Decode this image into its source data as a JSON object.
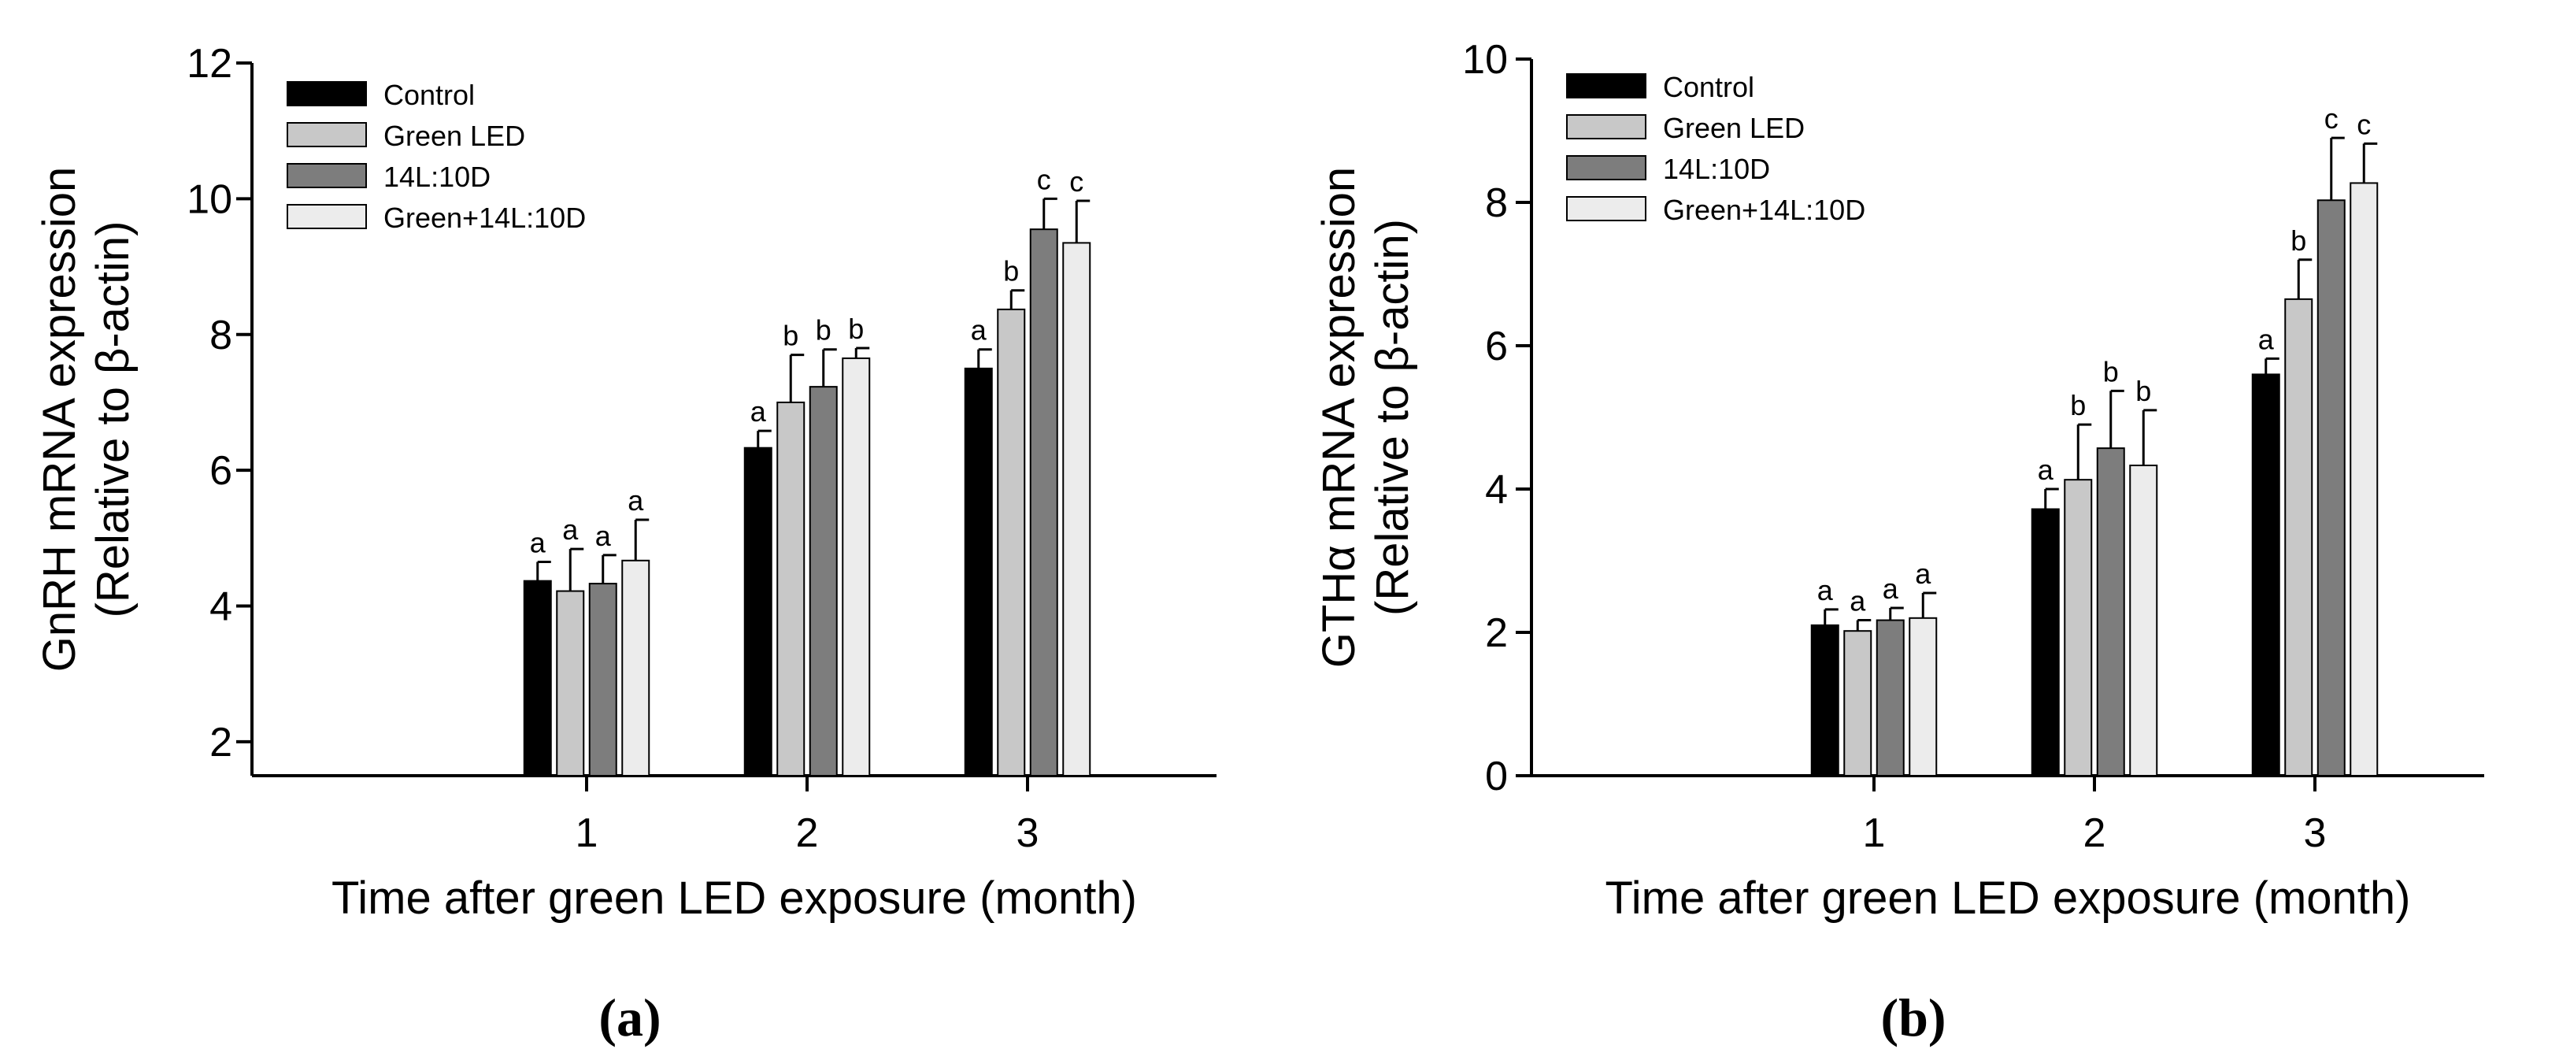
{
  "chart_data": [
    {
      "type": "bar",
      "panel_label": "(a)",
      "title": "",
      "xlabel": "Time after green LED exposure (month)",
      "ylabel_line1": "GnRH mRNA expression",
      "ylabel_line2": "(Relative to β-actin)",
      "ylim": [
        1.5,
        12
      ],
      "yticks": [
        2,
        4,
        6,
        8,
        10,
        12
      ],
      "categories": [
        "1",
        "2",
        "3"
      ],
      "grid": false,
      "legend_position": "top-left",
      "series": [
        {
          "name": "Control",
          "color": "#000000",
          "values": [
            4.37,
            6.33,
            7.5
          ],
          "errors": [
            0.28,
            0.25,
            0.28
          ],
          "labels": [
            "a",
            "a",
            "a"
          ]
        },
        {
          "name": "Green LED",
          "color": "#c8c8c8",
          "values": [
            4.22,
            7.0,
            8.37
          ],
          "errors": [
            0.62,
            0.7,
            0.28
          ],
          "labels": [
            "a",
            "b",
            "b"
          ]
        },
        {
          "name": "14L:10D",
          "color": "#7d7d7d",
          "values": [
            4.33,
            7.23,
            9.55
          ],
          "errors": [
            0.42,
            0.55,
            0.45
          ],
          "labels": [
            "a",
            "b",
            "c"
          ]
        },
        {
          "name": "Green+14L:10D",
          "color": "#ececec",
          "values": [
            4.67,
            7.65,
            9.35
          ],
          "errors": [
            0.6,
            0.15,
            0.62
          ],
          "labels": [
            "a",
            "b",
            "c"
          ]
        }
      ]
    },
    {
      "type": "bar",
      "panel_label": "(b)",
      "title": "",
      "xlabel": "Time after green LED exposure (month)",
      "ylabel_line1": "GTHα mRNA expression",
      "ylabel_line2": "(Relative to β-actin)",
      "ylim": [
        0,
        10
      ],
      "yticks": [
        0,
        2,
        4,
        6,
        8,
        10
      ],
      "categories": [
        "1",
        "2",
        "3"
      ],
      "grid": false,
      "legend_position": "top-left",
      "series": [
        {
          "name": "Control",
          "color": "#000000",
          "values": [
            2.1,
            3.72,
            5.6
          ],
          "errors": [
            0.22,
            0.28,
            0.22
          ],
          "labels": [
            "a",
            "a",
            "a"
          ]
        },
        {
          "name": "Green LED",
          "color": "#c8c8c8",
          "values": [
            2.02,
            4.13,
            6.65
          ],
          "errors": [
            0.15,
            0.77,
            0.55
          ],
          "labels": [
            "a",
            "b",
            "b"
          ]
        },
        {
          "name": "14L:10D",
          "color": "#7d7d7d",
          "values": [
            2.17,
            4.57,
            8.03
          ],
          "errors": [
            0.17,
            0.8,
            0.87
          ],
          "labels": [
            "a",
            "b",
            "c"
          ]
        },
        {
          "name": "Green+14L:10D",
          "color": "#ececec",
          "values": [
            2.2,
            4.33,
            8.27
          ],
          "errors": [
            0.35,
            0.77,
            0.55
          ],
          "labels": [
            "a",
            "b",
            "c"
          ]
        }
      ]
    }
  ]
}
